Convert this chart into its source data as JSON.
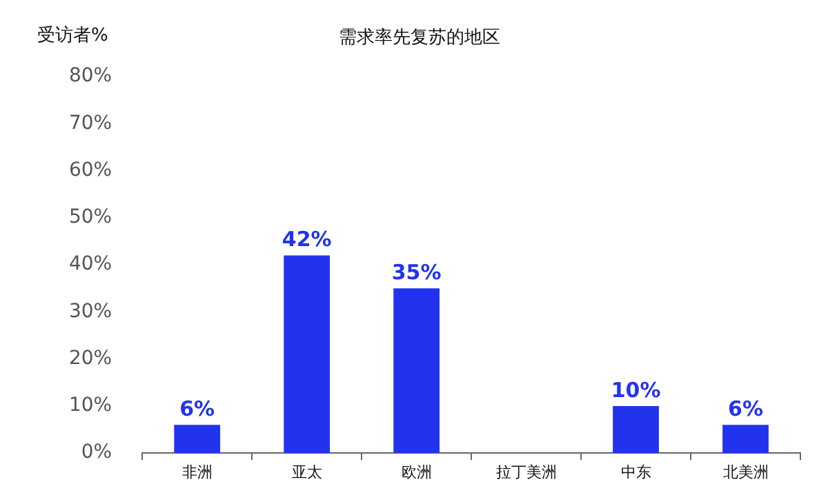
{
  "chart_data": {
    "type": "bar",
    "title": "需求率先复苏的地区",
    "ylabel": "受访者%",
    "categories": [
      "非洲",
      "亚太",
      "欧洲",
      "拉丁美洲",
      "中东",
      "北美洲"
    ],
    "values": [
      6,
      42,
      35,
      0,
      10,
      6
    ],
    "value_labels": [
      "6%",
      "42%",
      "35%",
      null,
      "10%",
      "6%"
    ],
    "color": "#2233ee",
    "ylim": [
      0,
      80
    ],
    "yticks": [
      {
        "value": 0,
        "label": "0%"
      },
      {
        "value": 10,
        "label": "10%"
      },
      {
        "value": 20,
        "label": "20%"
      },
      {
        "value": 30,
        "label": "30%"
      },
      {
        "value": 40,
        "label": "40%"
      },
      {
        "value": 50,
        "label": "50%"
      },
      {
        "value": 60,
        "label": "60%"
      },
      {
        "value": 70,
        "label": "70%"
      },
      {
        "value": 80,
        "label": "80%"
      }
    ],
    "grid": false,
    "legend": false
  }
}
